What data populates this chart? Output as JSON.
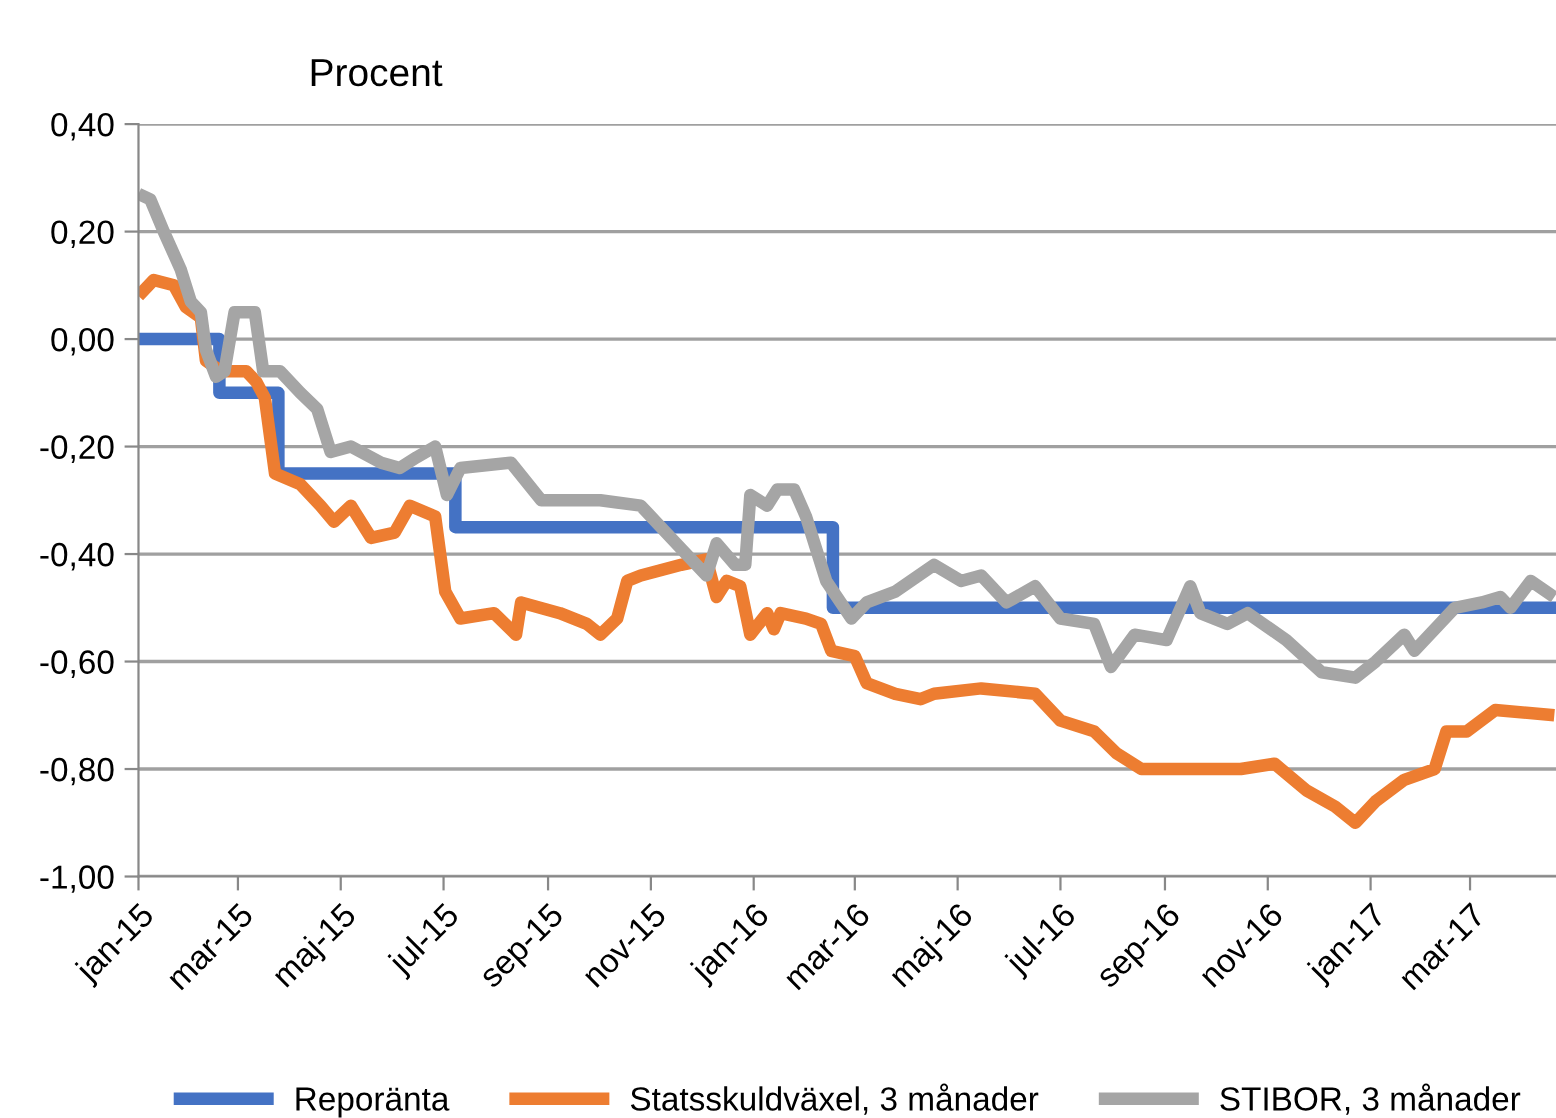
{
  "chart_data": {
    "type": "line",
    "ylabel": "Procent",
    "ylim": [
      -1.0,
      0.4
    ],
    "yticks": [
      {
        "value": -1.0,
        "label": "-1,00"
      },
      {
        "value": -0.8,
        "label": "-0,80"
      },
      {
        "value": -0.6,
        "label": "-0,60"
      },
      {
        "value": -0.4,
        "label": "-0,40"
      },
      {
        "value": -0.2,
        "label": "-0,20"
      },
      {
        "value": 0.0,
        "label": "0,00"
      },
      {
        "value": 0.2,
        "label": "0,20"
      },
      {
        "value": 0.4,
        "label": "0,40"
      }
    ],
    "xlim": [
      "2015-01-01",
      "2017-04-21"
    ],
    "xticks": [
      {
        "value": "2015-01-01",
        "label": "jan-15"
      },
      {
        "value": "2015-03-01",
        "label": "mar-15"
      },
      {
        "value": "2015-05-01",
        "label": "maj-15"
      },
      {
        "value": "2015-07-01",
        "label": "jul-15"
      },
      {
        "value": "2015-09-01",
        "label": "sep-15"
      },
      {
        "value": "2015-11-01",
        "label": "nov-15"
      },
      {
        "value": "2016-01-01",
        "label": "jan-16"
      },
      {
        "value": "2016-03-01",
        "label": "mar-16"
      },
      {
        "value": "2016-05-01",
        "label": "maj-16"
      },
      {
        "value": "2016-07-01",
        "label": "jul-16"
      },
      {
        "value": "2016-09-01",
        "label": "sep-16"
      },
      {
        "value": "2016-11-01",
        "label": "nov-16"
      },
      {
        "value": "2017-01-01",
        "label": "jan-17"
      },
      {
        "value": "2017-03-01",
        "label": "mar-17"
      }
    ],
    "grid": "y",
    "legend": "bottom",
    "marker": "none",
    "line_style": "solid",
    "series": [
      {
        "name": "Reporänta",
        "type": "step",
        "color": "#4472c4",
        "x": [
          "2015-01-01",
          "2015-02-18",
          "2015-03-25",
          "2015-07-08",
          "2016-02-17",
          "2017-04-21"
        ],
        "values": [
          0.0,
          -0.1,
          -0.25,
          -0.35,
          -0.5,
          -0.5
        ]
      },
      {
        "name": "Statsskuldväxel, 3 månader",
        "color": "#ed7d31",
        "x": [
          "2015-01-01",
          "2015-01-10",
          "2015-01-22",
          "2015-01-29",
          "2015-02-07",
          "2015-02-10",
          "2015-02-19",
          "2015-03-06",
          "2015-03-12",
          "2015-03-17",
          "2015-03-23",
          "2015-04-07",
          "2015-04-19",
          "2015-04-27",
          "2015-05-07",
          "2015-05-19",
          "2015-06-02",
          "2015-06-11",
          "2015-06-26",
          "2015-07-02",
          "2015-07-11",
          "2015-07-31",
          "2015-08-13",
          "2015-08-16",
          "2015-09-08",
          "2015-09-24",
          "2015-10-02",
          "2015-10-12",
          "2015-10-18",
          "2015-10-26",
          "2015-11-19",
          "2015-12-04",
          "2015-12-10",
          "2015-12-16",
          "2015-12-24",
          "2015-12-30",
          "2016-01-09",
          "2016-01-13",
          "2016-01-17",
          "2016-02-01",
          "2016-02-10",
          "2016-02-16",
          "2016-03-01",
          "2016-03-08",
          "2016-03-25",
          "2016-04-09",
          "2016-04-17",
          "2016-05-15",
          "2016-06-16",
          "2016-07-01",
          "2016-07-21",
          "2016-08-03",
          "2016-08-18",
          "2016-10-16",
          "2016-11-05",
          "2016-11-24",
          "2016-12-11",
          "2016-12-23",
          "2017-01-04",
          "2017-01-21",
          "2017-02-08",
          "2017-02-15",
          "2017-02-27",
          "2017-03-16",
          "2017-04-20"
        ],
        "values": [
          0.08,
          0.11,
          0.1,
          0.06,
          0.04,
          -0.04,
          -0.06,
          -0.06,
          -0.08,
          -0.11,
          -0.25,
          -0.27,
          -0.31,
          -0.34,
          -0.31,
          -0.37,
          -0.36,
          -0.31,
          -0.33,
          -0.47,
          -0.52,
          -0.51,
          -0.55,
          -0.49,
          -0.51,
          -0.53,
          -0.55,
          -0.52,
          -0.45,
          -0.44,
          -0.42,
          -0.41,
          -0.48,
          -0.45,
          -0.46,
          -0.55,
          -0.51,
          -0.54,
          -0.51,
          -0.52,
          -0.53,
          -0.58,
          -0.59,
          -0.64,
          -0.66,
          -0.67,
          -0.66,
          -0.65,
          -0.66,
          -0.71,
          -0.73,
          -0.77,
          -0.8,
          -0.8,
          -0.79,
          -0.84,
          -0.87,
          -0.9,
          -0.86,
          -0.82,
          -0.8,
          -0.73,
          -0.73,
          -0.69,
          -0.7
        ]
      },
      {
        "name": "STIBOR, 3 månader",
        "color": "#a5a5a5",
        "x": [
          "2015-01-01",
          "2015-01-08",
          "2015-01-16",
          "2015-01-26",
          "2015-02-01",
          "2015-02-07",
          "2015-02-10",
          "2015-02-16",
          "2015-02-21",
          "2015-02-27",
          "2015-03-11",
          "2015-03-16",
          "2015-03-26",
          "2015-04-07",
          "2015-04-17",
          "2015-04-25",
          "2015-05-07",
          "2015-05-25",
          "2015-06-05",
          "2015-06-15",
          "2015-06-26",
          "2015-07-03",
          "2015-07-11",
          "2015-08-10",
          "2015-08-28",
          "2015-10-02",
          "2015-10-26",
          "2015-11-07",
          "2015-11-19",
          "2015-12-04",
          "2015-12-10",
          "2015-12-21",
          "2015-12-27",
          "2015-12-30",
          "2016-01-09",
          "2016-01-15",
          "2016-01-25",
          "2016-02-01",
          "2016-02-13",
          "2016-02-28",
          "2016-03-08",
          "2016-03-25",
          "2016-04-17",
          "2016-05-03",
          "2016-05-15",
          "2016-05-30",
          "2016-06-16",
          "2016-07-01",
          "2016-07-21",
          "2016-07-31",
          "2016-08-14",
          "2016-09-02",
          "2016-09-16",
          "2016-09-22",
          "2016-10-08",
          "2016-10-20",
          "2016-11-12",
          "2016-12-03",
          "2016-12-23",
          "2017-01-04",
          "2017-01-21",
          "2017-01-27",
          "2017-02-20",
          "2017-03-08",
          "2017-03-19",
          "2017-03-25",
          "2017-04-06",
          "2017-04-20"
        ],
        "values": [
          0.27,
          0.26,
          0.2,
          0.13,
          0.07,
          0.05,
          -0.02,
          -0.07,
          -0.06,
          0.05,
          0.05,
          -0.06,
          -0.06,
          -0.1,
          -0.13,
          -0.21,
          -0.2,
          -0.23,
          -0.24,
          -0.22,
          -0.2,
          -0.29,
          -0.24,
          -0.23,
          -0.3,
          -0.3,
          -0.31,
          -0.35,
          -0.39,
          -0.44,
          -0.38,
          -0.42,
          -0.42,
          -0.29,
          -0.31,
          -0.28,
          -0.28,
          -0.33,
          -0.45,
          -0.52,
          -0.49,
          -0.47,
          -0.42,
          -0.45,
          -0.44,
          -0.49,
          -0.46,
          -0.52,
          -0.53,
          -0.61,
          -0.55,
          -0.56,
          -0.46,
          -0.51,
          -0.53,
          -0.51,
          -0.56,
          -0.62,
          -0.63,
          -0.6,
          -0.55,
          -0.58,
          -0.5,
          -0.49,
          -0.48,
          -0.5,
          -0.45,
          -0.48
        ]
      }
    ]
  }
}
